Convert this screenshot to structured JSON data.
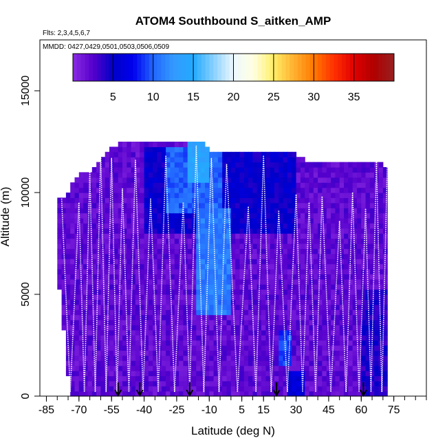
{
  "chart_data": {
    "type": "heatmap",
    "title": "ATOM4 Southbound S_aitken_AMP",
    "flights_note": "Flts: 2,3,4,5,6,7",
    "dates_note": "MMDD: 0427,0429,0501,0503,0506,0509",
    "xlabel": "Latitude (deg N)",
    "ylabel": "Altitude (m)",
    "xlim": [
      -88,
      90
    ],
    "ylim": [
      0,
      17500
    ],
    "x_ticks": [
      -85,
      -70,
      -55,
      -40,
      -25,
      -10,
      5,
      15,
      30,
      45,
      60,
      75
    ],
    "x_tick_labels": [
      "-85",
      "-70",
      "-55",
      "-40",
      "-25",
      "-10",
      "5",
      "15",
      "30",
      "45",
      "60",
      "75"
    ],
    "y_ticks": [
      0,
      5000,
      10000,
      15000
    ],
    "y_tick_labels": [
      "0",
      "5000",
      "10000",
      "15000"
    ],
    "colorbar": {
      "range": [
        0,
        40
      ],
      "ticks": [
        5,
        10,
        15,
        20,
        25,
        30,
        35
      ],
      "tick_labels": [
        "5",
        "10",
        "15",
        "20",
        "25",
        "30",
        "35"
      ],
      "colors": [
        "#8a2be2",
        "#5500cc",
        "#0000c8",
        "#0000ee",
        "#2266ff",
        "#3399ff",
        "#22aaff",
        "#88d0ff",
        "#eef8ff",
        "#ffffe0",
        "#ffee66",
        "#ffb030",
        "#ff7a00",
        "#ff3000",
        "#e00000",
        "#b00000",
        "#982020"
      ]
    },
    "cell_size": {
      "lat_deg": 2,
      "alt_m": 250
    },
    "lat_extent": [
      -80,
      72
    ],
    "alt_ceiling_profile": [
      {
        "lat": -80,
        "alt": 9750
      },
      {
        "lat": -76,
        "alt": 9750
      },
      {
        "lat": -74,
        "alt": 10250
      },
      {
        "lat": -70,
        "alt": 10750
      },
      {
        "lat": -64,
        "alt": 11000
      },
      {
        "lat": -58,
        "alt": 11750
      },
      {
        "lat": -50,
        "alt": 12500
      },
      {
        "lat": -14,
        "alt": 12500
      },
      {
        "lat": -10,
        "alt": 12000
      },
      {
        "lat": 28,
        "alt": 12000
      },
      {
        "lat": 34,
        "alt": 11500
      },
      {
        "lat": 68,
        "alt": 11500
      },
      {
        "lat": 72,
        "alt": 11000
      }
    ],
    "alt_floor_profile": [
      {
        "lat": -80,
        "alt": 6000
      },
      {
        "lat": -78,
        "alt": 4500
      },
      {
        "lat": -76,
        "alt": 2000
      },
      {
        "lat": -74,
        "alt": 0
      },
      {
        "lat": 74,
        "alt": 0
      },
      {
        "lat": 76,
        "alt": 4800
      }
    ],
    "enhancement_regions": [
      {
        "lat": [
          -20,
          -10
        ],
        "alt": [
          10500,
          12500
        ],
        "value": 14
      },
      {
        "lat": [
          -30,
          -5
        ],
        "alt": [
          9000,
          12000
        ],
        "value": 10
      },
      {
        "lat": [
          -15,
          0
        ],
        "alt": [
          4000,
          9000
        ],
        "value": 11
      },
      {
        "lat": [
          -40,
          30
        ],
        "alt": [
          8000,
          12000
        ],
        "value": 5
      },
      {
        "lat": [
          22,
          28
        ],
        "alt": [
          1500,
          3000
        ],
        "value": 9
      },
      {
        "lat": [
          60,
          74
        ],
        "alt": [
          0,
          5000
        ],
        "value": 4
      },
      {
        "lat": [
          26,
          34
        ],
        "alt": [
          0,
          1200
        ],
        "value": 6
      }
    ],
    "background_value": 2,
    "flight_profile_lats": [
      -78,
      -70,
      -65,
      -60,
      -55,
      -50,
      -44,
      -37,
      -30,
      -22,
      -16,
      -9,
      -2,
      8,
      15,
      22,
      30,
      36,
      42,
      50,
      56,
      62,
      67,
      72
    ],
    "flight_profile_top_alts": [
      9700,
      9500,
      11000,
      12000,
      11700,
      10200,
      11600,
      9700,
      11800,
      9500,
      12300,
      11700,
      11400,
      9300,
      11800,
      9100,
      9900,
      9500,
      9800,
      8600,
      10000,
      9200,
      11500,
      11400
    ],
    "sounding_arrow_lats": [
      -52,
      -42,
      -19,
      21,
      61
    ]
  }
}
